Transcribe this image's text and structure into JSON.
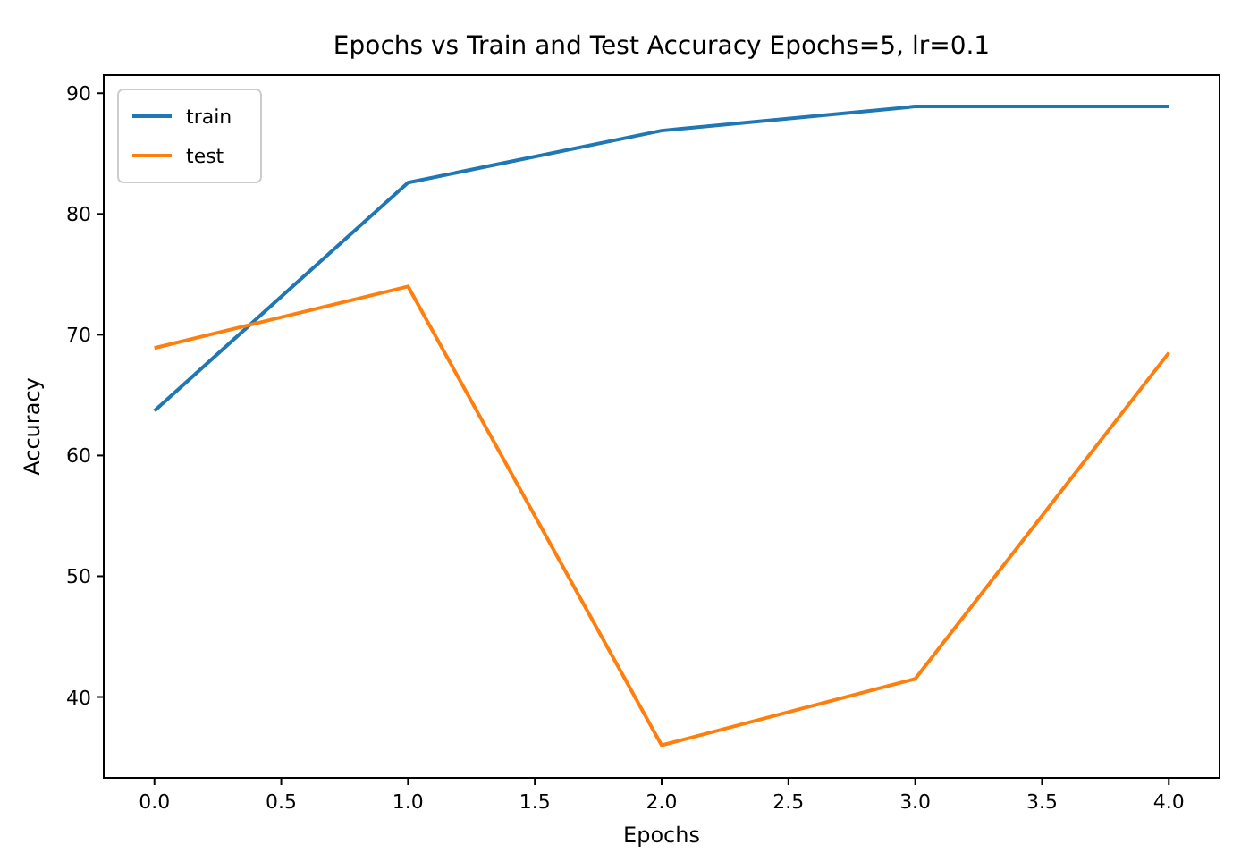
{
  "chart_data": {
    "type": "line",
    "title": "Epochs vs Train and Test Accuracy Epochs=5, lr=0.1",
    "xlabel": "Epochs",
    "ylabel": "Accuracy",
    "x": [
      0,
      1,
      2,
      3,
      4
    ],
    "series": [
      {
        "name": "train",
        "color": "#1f77b4",
        "values": [
          63.7,
          82.6,
          86.9,
          88.9,
          88.9
        ]
      },
      {
        "name": "test",
        "color": "#ff7f0e",
        "values": [
          68.9,
          74.0,
          36.0,
          41.5,
          68.5
        ]
      }
    ],
    "xlim": [
      -0.2,
      4.2
    ],
    "xticks": [
      {
        "value": 0,
        "label": "0.0"
      },
      {
        "value": 0.5,
        "label": "0.5"
      },
      {
        "value": 1,
        "label": "1.0"
      },
      {
        "value": 1.5,
        "label": "1.5"
      },
      {
        "value": 2,
        "label": "2.0"
      },
      {
        "value": 2.5,
        "label": "2.5"
      },
      {
        "value": 3,
        "label": "3.0"
      },
      {
        "value": 3.5,
        "label": "3.5"
      },
      {
        "value": 4,
        "label": "4.0"
      }
    ],
    "ylim": [
      33.3,
      91.5
    ],
    "yticks": [
      40,
      50,
      60,
      70,
      80,
      90
    ],
    "legend": "top left",
    "grid": false
  }
}
